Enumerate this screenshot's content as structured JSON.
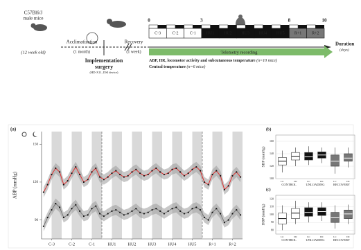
{
  "timeline": {
    "strain": "C57Bl6/J",
    "sex": "male mice",
    "age": "(12 week old)",
    "acclimatization": "Acclimatization",
    "acclimatization_duration": "(1 month)",
    "recovery": "Recovery",
    "recovery_duration": "(1 week)",
    "surgery": "Implementation",
    "surgery_2": "surgery",
    "surgery_device": "(HD-X11, DSI device)",
    "day_marks": [
      0,
      3,
      8,
      10
    ],
    "days": [
      {
        "label": "C-3",
        "fill": "#ffffff",
        "text": "#111111"
      },
      {
        "label": "C-2",
        "fill": "#ffffff",
        "text": "#111111"
      },
      {
        "label": "C-1",
        "fill": "#ffffff",
        "text": "#111111"
      },
      {
        "label": "HU1",
        "fill": "#111111",
        "text": "#ffffff"
      },
      {
        "label": "HU2",
        "fill": "#111111",
        "text": "#ffffff"
      },
      {
        "label": "HU3",
        "fill": "#111111",
        "text": "#ffffff"
      },
      {
        "label": "HU4",
        "fill": "#111111",
        "text": "#ffffff"
      },
      {
        "label": "HU5",
        "fill": "#111111",
        "text": "#ffffff"
      },
      {
        "label": "R+1",
        "fill": "#777777",
        "text": "#ffffff"
      },
      {
        "label": "R+2",
        "fill": "#777777",
        "text": "#ffffff"
      }
    ],
    "duration": "Duration",
    "duration_unit": "(days)",
    "telemetry": "Telemetry recording",
    "measure_1": "ABP, HR, locomotor activity and subcutaneous temperature",
    "measure_1_n": "(n=10 mice)",
    "measure_2": "Central temperature",
    "measure_2_n": "(n=6 mice)"
  },
  "chart_data": [
    {
      "type": "line",
      "panel": "(a)",
      "ylabel": "ABP (mmHg)",
      "xlim": [
        0,
        10
      ],
      "ylim": [
        75,
        160
      ],
      "yticks": [
        90,
        120,
        150
      ],
      "xticks": [
        {
          "value": 0.5,
          "label": "C-3"
        },
        {
          "value": 1.5,
          "label": "C-2"
        },
        {
          "value": 2.5,
          "label": "C-1"
        },
        {
          "value": 3.5,
          "label": "HU1"
        },
        {
          "value": 4.5,
          "label": "HU2"
        },
        {
          "value": 5.5,
          "label": "HU3"
        },
        {
          "value": 6.5,
          "label": "HU4"
        },
        {
          "value": 7.5,
          "label": "HU5"
        },
        {
          "value": 8.5,
          "label": "R+1"
        },
        {
          "value": 9.5,
          "label": "R+2"
        }
      ],
      "vlines": [
        3,
        8
      ],
      "night_shading": true,
      "x": [
        0.1,
        0.3,
        0.5,
        0.7,
        0.9,
        1.1,
        1.3,
        1.5,
        1.7,
        1.9,
        2.1,
        2.3,
        2.5,
        2.7,
        2.9,
        3.1,
        3.3,
        3.5,
        3.7,
        3.9,
        4.1,
        4.3,
        4.5,
        4.7,
        4.9,
        5.1,
        5.3,
        5.5,
        5.7,
        5.9,
        6.1,
        6.3,
        6.5,
        6.7,
        6.9,
        7.1,
        7.3,
        7.5,
        7.7,
        7.9,
        8.1,
        8.3,
        8.5,
        8.7,
        8.9,
        9.1,
        9.3,
        9.5,
        9.7,
        9.9
      ],
      "series": [
        {
          "color": "#e03030",
          "marker_color": "#111111",
          "sd": 4,
          "values": [
            112,
            118,
            126,
            131,
            128,
            118,
            121,
            127,
            132,
            126,
            120,
            122,
            128,
            131,
            124,
            122,
            124,
            127,
            129,
            126,
            124,
            125,
            128,
            130,
            127,
            125,
            126,
            129,
            131,
            128,
            126,
            127,
            130,
            131,
            128,
            125,
            127,
            130,
            132,
            129,
            120,
            118,
            126,
            129,
            125,
            114,
            117,
            125,
            128,
            124
          ]
        },
        {
          "color": "#777777",
          "marker_color": "#111111",
          "sd": 4,
          "values": [
            85,
            92,
            98,
            103,
            100,
            92,
            94,
            99,
            102,
            97,
            93,
            94,
            99,
            101,
            95,
            93,
            95,
            97,
            98,
            96,
            94,
            95,
            97,
            99,
            96,
            95,
            96,
            98,
            99,
            97,
            95,
            97,
            99,
            100,
            97,
            95,
            96,
            99,
            100,
            98,
            92,
            90,
            96,
            99,
            95,
            88,
            90,
            95,
            98,
            94
          ]
        }
      ]
    },
    {
      "type": "box",
      "panel": "(b)",
      "ylabel": "SBP (mmHg)",
      "ylim": [
        100,
        170
      ],
      "yticks": [
        100,
        120,
        140,
        160
      ],
      "groups": [
        "CONTROL",
        "UNLOADING",
        "RECOVERY"
      ],
      "categories": [
        "LC",
        "DC",
        "LC",
        "DC",
        "LC",
        "DC"
      ],
      "colors": [
        "#ffffff",
        "#ffffff",
        "#111111",
        "#111111",
        "#777777",
        "#777777"
      ],
      "boxes": [
        [
          110,
          122,
          128,
          134,
          145
        ],
        [
          120,
          130,
          136,
          142,
          150
        ],
        [
          122,
          130,
          135,
          142,
          152
        ],
        [
          125,
          133,
          138,
          143,
          150
        ],
        [
          108,
          120,
          128,
          138,
          150
        ],
        [
          118,
          128,
          133,
          140,
          150
        ]
      ]
    },
    {
      "type": "box",
      "panel": "(c)",
      "ylabel": "DBP (mmHg)",
      "ylim": [
        75,
        125
      ],
      "yticks": [
        80,
        90,
        100,
        110,
        120
      ],
      "groups": [
        "CONTROL",
        "UNLOADING",
        "RECOVERY"
      ],
      "categories": [
        "LC",
        "DC",
        "LC",
        "DC",
        "LC",
        "DC"
      ],
      "colors": [
        "#ffffff",
        "#ffffff",
        "#111111",
        "#111111",
        "#777777",
        "#777777"
      ],
      "boxes": [
        [
          80,
          88,
          95,
          102,
          112
        ],
        [
          88,
          95,
          102,
          108,
          118
        ],
        [
          90,
          98,
          103,
          109,
          116
        ],
        [
          92,
          99,
          104,
          109,
          116
        ],
        [
          82,
          90,
          96,
          103,
          112
        ],
        [
          88,
          95,
          101,
          106,
          113
        ]
      ]
    }
  ]
}
